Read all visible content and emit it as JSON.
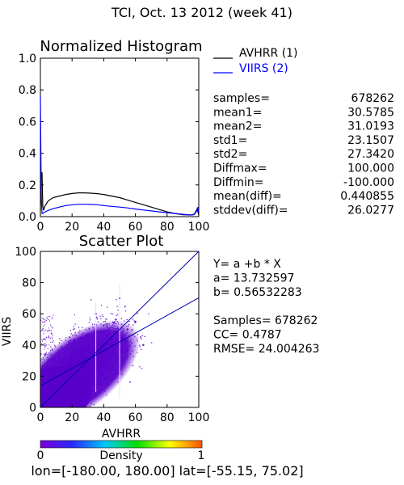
{
  "header": {
    "title": "TCI,  Oct. 13 2012 (week 41)"
  },
  "colors": {
    "avhrr": "#000000",
    "viirs": "#0000ff",
    "scatter": "#5a00cc",
    "density_stops": [
      "#7a00d8",
      "#2a2aff",
      "#00c8ff",
      "#00e000",
      "#ffff00",
      "#ff5000"
    ]
  },
  "histogram": {
    "title": "Normalized Histogram",
    "legend": [
      {
        "label": "AVHRR (1)",
        "color": "#000000"
      },
      {
        "label": "VIIRS (2)",
        "color": "#0000ff"
      }
    ],
    "stats": [
      {
        "key": "samples=",
        "value": "678262"
      },
      {
        "key": "mean1=",
        "value": "30.5785"
      },
      {
        "key": "mean2=",
        "value": "31.0193"
      },
      {
        "key": "std1=",
        "value": "23.1507"
      },
      {
        "key": "std2=",
        "value": "27.3420"
      },
      {
        "key": "Diffmax=",
        "value": "100.000"
      },
      {
        "key": "Diffmin=",
        "value": "-100.000"
      },
      {
        "key": "mean(diff)=",
        "value": "0.440855"
      },
      {
        "key": "stddev(diff)=",
        "value": "26.0277"
      }
    ]
  },
  "scatter": {
    "title": "Scatter Plot",
    "xlabel": "AVHRR",
    "ylabel": "VIIRS",
    "fit": [
      "Y= a +b * X",
      "a= 13.732597",
      "b= 0.56532283",
      "",
      "Samples= 678262",
      "CC=  0.4787",
      "RMSE= 24.004263"
    ]
  },
  "colorbar": {
    "label": "Density",
    "min_label": "0",
    "max_label": "1"
  },
  "footer": {
    "coords": "lon=[-180.00, 180.00] lat=[-55.15, 75.02]"
  },
  "chart_data": [
    {
      "type": "line",
      "title": "Normalized Histogram",
      "xlim": [
        0,
        100
      ],
      "ylim": [
        0,
        1
      ],
      "xticks": [
        "0",
        "20",
        "40",
        "60",
        "80",
        "100"
      ],
      "yticks": [
        "0.0",
        "0.2",
        "0.4",
        "0.6",
        "0.8",
        "1.0"
      ],
      "series": [
        {
          "name": "AVHRR (1)",
          "color": "#000000",
          "x": [
            0,
            0.5,
            1,
            1.5,
            2,
            3,
            5,
            8,
            12,
            16,
            20,
            24,
            28,
            32,
            36,
            40,
            45,
            50,
            55,
            60,
            65,
            70,
            75,
            80,
            85,
            90,
            95,
            97,
            98,
            99,
            99.5,
            100
          ],
          "y": [
            0.04,
            0.26,
            0.28,
            0.07,
            0.04,
            0.07,
            0.1,
            0.12,
            0.13,
            0.14,
            0.146,
            0.15,
            0.15,
            0.148,
            0.145,
            0.14,
            0.13,
            0.12,
            0.105,
            0.09,
            0.075,
            0.06,
            0.045,
            0.03,
            0.02,
            0.012,
            0.01,
            0.015,
            0.03,
            0.05,
            0.03,
            0.01
          ]
        },
        {
          "name": "VIIRS (2)",
          "color": "#0000ff",
          "x": [
            0,
            0.3,
            0.6,
            1,
            1.5,
            2,
            3,
            5,
            8,
            12,
            16,
            20,
            24,
            28,
            32,
            36,
            40,
            45,
            50,
            55,
            60,
            65,
            70,
            75,
            80,
            85,
            90,
            95,
            97,
            98,
            99,
            99.5,
            100
          ],
          "y": [
            0.76,
            0.4,
            0.12,
            0.02,
            0.02,
            0.025,
            0.03,
            0.04,
            0.05,
            0.06,
            0.07,
            0.075,
            0.078,
            0.078,
            0.077,
            0.075,
            0.07,
            0.065,
            0.06,
            0.055,
            0.048,
            0.042,
            0.036,
            0.03,
            0.025,
            0.02,
            0.015,
            0.01,
            0.012,
            0.025,
            0.04,
            0.06,
            0.03
          ]
        }
      ]
    },
    {
      "type": "scatter",
      "title": "Scatter Plot",
      "xlabel": "AVHRR",
      "ylabel": "VIIRS",
      "xlim": [
        0,
        100
      ],
      "ylim": [
        0,
        100
      ],
      "xticks": [
        "0",
        "20",
        "40",
        "60",
        "80",
        "100"
      ],
      "yticks": [
        "0",
        "20",
        "40",
        "60",
        "80",
        "100"
      ],
      "points": [
        [
          20,
          25
        ],
        [
          25,
          28
        ],
        [
          30,
          30
        ],
        [
          35,
          35
        ],
        [
          40,
          35
        ],
        [
          45,
          40
        ],
        [
          15,
          20
        ],
        [
          10,
          15
        ],
        [
          50,
          45
        ],
        [
          55,
          50
        ],
        [
          30,
          45
        ],
        [
          20,
          35
        ],
        [
          40,
          28
        ],
        [
          60,
          55
        ],
        [
          5,
          10
        ],
        [
          35,
          60
        ],
        [
          50,
          70
        ],
        [
          25,
          15
        ],
        [
          45,
          25
        ],
        [
          65,
          40
        ]
      ],
      "lines": [
        {
          "name": "1:1",
          "x": [
            0,
            100
          ],
          "y": [
            0,
            100
          ]
        },
        {
          "name": "fit",
          "x": [
            0,
            100
          ],
          "y": [
            13.73,
            70.26
          ]
        }
      ]
    }
  ]
}
